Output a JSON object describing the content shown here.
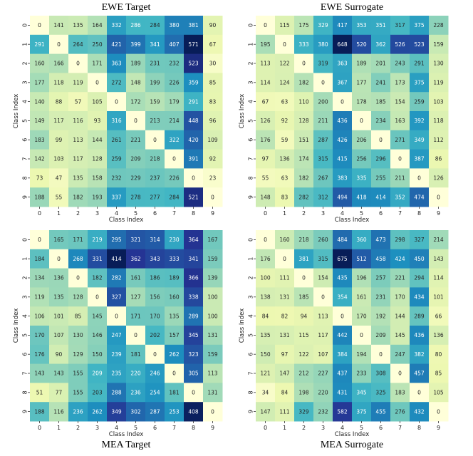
{
  "chart_data": [
    {
      "type": "heatmap",
      "title": "EWE Target",
      "xlabel": "Class Index",
      "ylabel": "Class Index",
      "x_categories": [
        "0",
        "1",
        "2",
        "3",
        "4",
        "5",
        "6",
        "7",
        "8",
        "9"
      ],
      "y_categories": [
        "0",
        "1",
        "2",
        "3",
        "4",
        "5",
        "6",
        "7",
        "8",
        "9"
      ],
      "colormap": "YlGnBu",
      "values": [
        [
          0,
          141,
          135,
          164,
          332,
          286,
          284,
          380,
          381,
          90
        ],
        [
          291,
          0,
          264,
          250,
          421,
          399,
          341,
          407,
          571,
          67
        ],
        [
          160,
          166,
          0,
          171,
          363,
          189,
          231,
          232,
          523,
          30
        ],
        [
          177,
          118,
          119,
          0,
          272,
          148,
          199,
          226,
          359,
          85
        ],
        [
          140,
          88,
          57,
          105,
          0,
          172,
          159,
          179,
          291,
          83
        ],
        [
          149,
          117,
          116,
          93,
          316,
          0,
          213,
          214,
          448,
          96
        ],
        [
          183,
          99,
          113,
          144,
          261,
          221,
          0,
          322,
          420,
          109
        ],
        [
          142,
          103,
          117,
          128,
          259,
          209,
          218,
          0,
          391,
          92
        ],
        [
          73,
          47,
          135,
          158,
          232,
          229,
          237,
          226,
          0,
          23
        ],
        [
          188,
          55,
          182,
          193,
          337,
          278,
          277,
          284,
          521,
          0
        ]
      ]
    },
    {
      "type": "heatmap",
      "title": "EWE Surrogate",
      "xlabel": "Class Index",
      "ylabel": "Class Index",
      "x_categories": [
        "0",
        "1",
        "2",
        "3",
        "4",
        "5",
        "6",
        "7",
        "8",
        "9"
      ],
      "y_categories": [
        "0",
        "1",
        "2",
        "3",
        "4",
        "5",
        "6",
        "7",
        "8",
        "9"
      ],
      "colormap": "YlGnBu",
      "values": [
        [
          0,
          115,
          175,
          329,
          417,
          353,
          351,
          317,
          375,
          228
        ],
        [
          195,
          0,
          333,
          380,
          648,
          520,
          362,
          526,
          523,
          159
        ],
        [
          113,
          122,
          0,
          319,
          363,
          189,
          201,
          243,
          291,
          130
        ],
        [
          114,
          124,
          182,
          0,
          367,
          177,
          241,
          173,
          375,
          119
        ],
        [
          67,
          63,
          110,
          200,
          0,
          178,
          185,
          154,
          259,
          103
        ],
        [
          126,
          92,
          128,
          211,
          436,
          0,
          234,
          163,
          392,
          118
        ],
        [
          176,
          59,
          151,
          287,
          426,
          206,
          0,
          271,
          349,
          112
        ],
        [
          97,
          136,
          174,
          315,
          415,
          256,
          296,
          0,
          387,
          86
        ],
        [
          55,
          63,
          182,
          267,
          383,
          335,
          255,
          211,
          0,
          126
        ],
        [
          148,
          83,
          282,
          312,
          494,
          418,
          414,
          352,
          474,
          0
        ]
      ]
    },
    {
      "type": "heatmap",
      "title": "MEA Target",
      "xlabel": "Class Index",
      "ylabel": "Class Index",
      "x_categories": [
        "0",
        "1",
        "2",
        "3",
        "4",
        "5",
        "6",
        "7",
        "8",
        "9"
      ],
      "y_categories": [
        "0",
        "1",
        "2",
        "3",
        "4",
        "5",
        "6",
        "7",
        "8",
        "9"
      ],
      "colormap": "YlGnBu",
      "values": [
        [
          0,
          165,
          171,
          219,
          295,
          321,
          314,
          230,
          364,
          167
        ],
        [
          184,
          0,
          268,
          331,
          414,
          362,
          343,
          333,
          341,
          159
        ],
        [
          134,
          136,
          0,
          182,
          282,
          161,
          186,
          189,
          366,
          139
        ],
        [
          119,
          135,
          128,
          0,
          327,
          127,
          156,
          160,
          338,
          100
        ],
        [
          106,
          101,
          85,
          145,
          0,
          171,
          170,
          135,
          289,
          100
        ],
        [
          170,
          107,
          130,
          146,
          247,
          0,
          202,
          157,
          345,
          131
        ],
        [
          176,
          90,
          129,
          150,
          239,
          181,
          0,
          262,
          323,
          159
        ],
        [
          143,
          143,
          155,
          209,
          235,
          220,
          246,
          0,
          305,
          113
        ],
        [
          51,
          77,
          155,
          203,
          288,
          236,
          254,
          181,
          0,
          131
        ],
        [
          188,
          116,
          236,
          262,
          349,
          302,
          287,
          253,
          408,
          0
        ]
      ]
    },
    {
      "type": "heatmap",
      "title": "MEA Surrogate",
      "xlabel": "Class Index",
      "ylabel": "Class Index",
      "x_categories": [
        "0",
        "1",
        "2",
        "3",
        "4",
        "5",
        "6",
        "7",
        "8",
        "9"
      ],
      "y_categories": [
        "0",
        "1",
        "2",
        "3",
        "4",
        "5",
        "6",
        "7",
        "8",
        "9"
      ],
      "colormap": "YlGnBu",
      "values": [
        [
          0,
          160,
          218,
          260,
          484,
          360,
          473,
          298,
          327,
          214
        ],
        [
          176,
          0,
          381,
          315,
          675,
          512,
          458,
          424,
          450,
          143
        ],
        [
          100,
          111,
          0,
          154,
          435,
          196,
          257,
          221,
          294,
          114
        ],
        [
          138,
          131,
          185,
          0,
          354,
          161,
          231,
          170,
          434,
          101
        ],
        [
          84,
          82,
          94,
          113,
          0,
          170,
          192,
          144,
          289,
          66
        ],
        [
          135,
          131,
          115,
          117,
          442,
          0,
          209,
          145,
          436,
          136
        ],
        [
          150,
          97,
          122,
          107,
          384,
          194,
          0,
          247,
          382,
          80
        ],
        [
          121,
          147,
          212,
          227,
          437,
          233,
          308,
          0,
          457,
          85
        ],
        [
          34,
          84,
          198,
          220,
          431,
          345,
          325,
          183,
          0,
          105
        ],
        [
          147,
          111,
          329,
          232,
          582,
          375,
          455,
          276,
          432,
          0
        ]
      ]
    }
  ]
}
